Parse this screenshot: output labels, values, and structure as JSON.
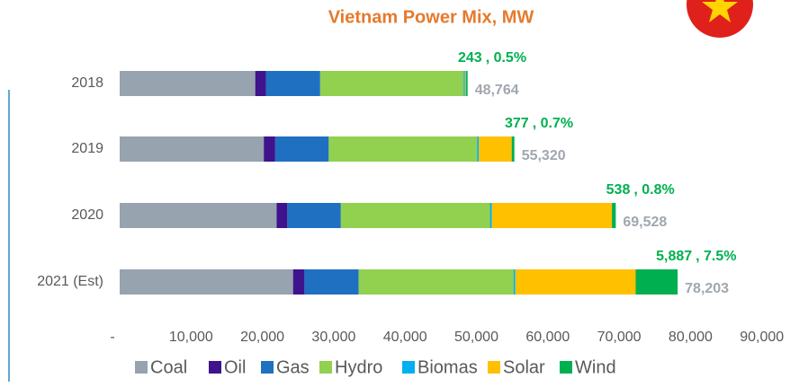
{
  "chart_data": {
    "type": "stacked_barh",
    "title": "Vietnam Power Mix, MW",
    "categories": [
      "2018",
      "2019",
      "2020",
      "2021 (Est)"
    ],
    "series": [
      {
        "name": "Coal",
        "color": "#97a3af",
        "values": [
          19000,
          20200,
          22000,
          24300
        ]
      },
      {
        "name": "Oil",
        "color": "#3f138c",
        "values": [
          1500,
          1600,
          1500,
          1600
        ]
      },
      {
        "name": "Gas",
        "color": "#1f70c1",
        "values": [
          7600,
          7500,
          7500,
          7600
        ]
      },
      {
        "name": "Hydro",
        "color": "#92d050",
        "values": [
          20100,
          20800,
          20900,
          21700
        ]
      },
      {
        "name": "Biomas",
        "color": "#00b0f0",
        "values": [
          200,
          250,
          250,
          250
        ]
      },
      {
        "name": "Solar",
        "color": "#ffc000",
        "values": [
          121,
          4593,
          16840,
          16866
        ]
      },
      {
        "name": "Wind",
        "color": "#00b050",
        "values": [
          243,
          377,
          538,
          5887
        ],
        "value_labels": [
          "243",
          "377",
          "538",
          "5,887"
        ]
      }
    ],
    "wind_share": {
      "values": [
        0.5,
        0.7,
        0.8,
        7.5
      ],
      "value_labels": [
        ", 0.5%",
        ", 0.7%",
        ", 0.8%",
        ", 7.5%"
      ]
    },
    "totals": {
      "values": [
        48764,
        55320,
        69528,
        78203
      ],
      "value_labels": [
        "48,764",
        "55,320",
        "69,528",
        "78,203"
      ]
    },
    "xlim": [
      0,
      90000
    ],
    "xticks": [
      {
        "value": 0,
        "label": "-"
      },
      {
        "value": 10000,
        "label": "10,000"
      },
      {
        "value": 20000,
        "label": "20,000"
      },
      {
        "value": 30000,
        "label": "30,000"
      },
      {
        "value": 40000,
        "label": "40,000"
      },
      {
        "value": 50000,
        "label": "50,000"
      },
      {
        "value": 60000,
        "label": "60,000"
      },
      {
        "value": 70000,
        "label": "70,000"
      },
      {
        "value": 80000,
        "label": "80,000"
      },
      {
        "value": 90000,
        "label": "90,000"
      }
    ],
    "legend": "bottom"
  }
}
